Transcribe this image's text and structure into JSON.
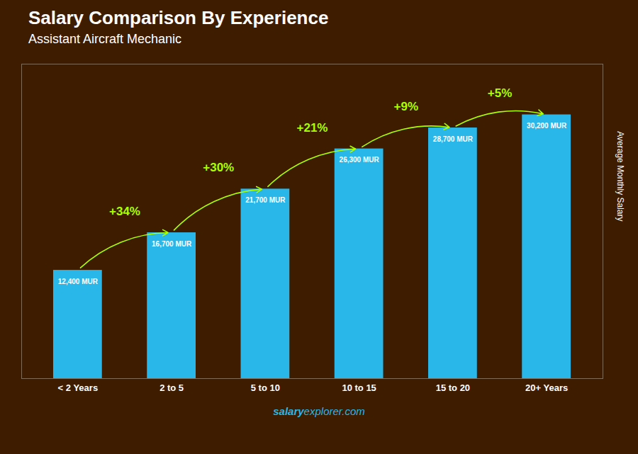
{
  "chart_data": {
    "type": "bar",
    "title": "Salary Comparison By Experience",
    "subtitle": "Assistant Aircraft Mechanic",
    "categories": [
      "< 2 Years",
      "2 to 5",
      "5 to 10",
      "10 to 15",
      "15 to 20",
      "20+ Years"
    ],
    "values": [
      12400,
      16700,
      21700,
      26300,
      28700,
      30200
    ],
    "value_labels": [
      "12,400 MUR",
      "16,700 MUR",
      "21,700 MUR",
      "26,300 MUR",
      "28,700 MUR",
      "30,200 MUR"
    ],
    "data_labels": true,
    "color": "#29b6e8",
    "ylim": [
      0,
      36000
    ],
    "ylabel": "Average Monthly Salary",
    "tick_labels": "x",
    "grid": false,
    "annotations": [
      {
        "text": "+34%",
        "color": "#aaff00"
      },
      {
        "text": "+30%",
        "color": "#aaff00"
      },
      {
        "text": "+21%",
        "color": "#aaff00"
      },
      {
        "text": "+9%",
        "color": "#aaff00"
      },
      {
        "text": "+5%",
        "color": "#aaff00"
      }
    ],
    "footer": [
      "salary",
      "explorer.com"
    ]
  }
}
